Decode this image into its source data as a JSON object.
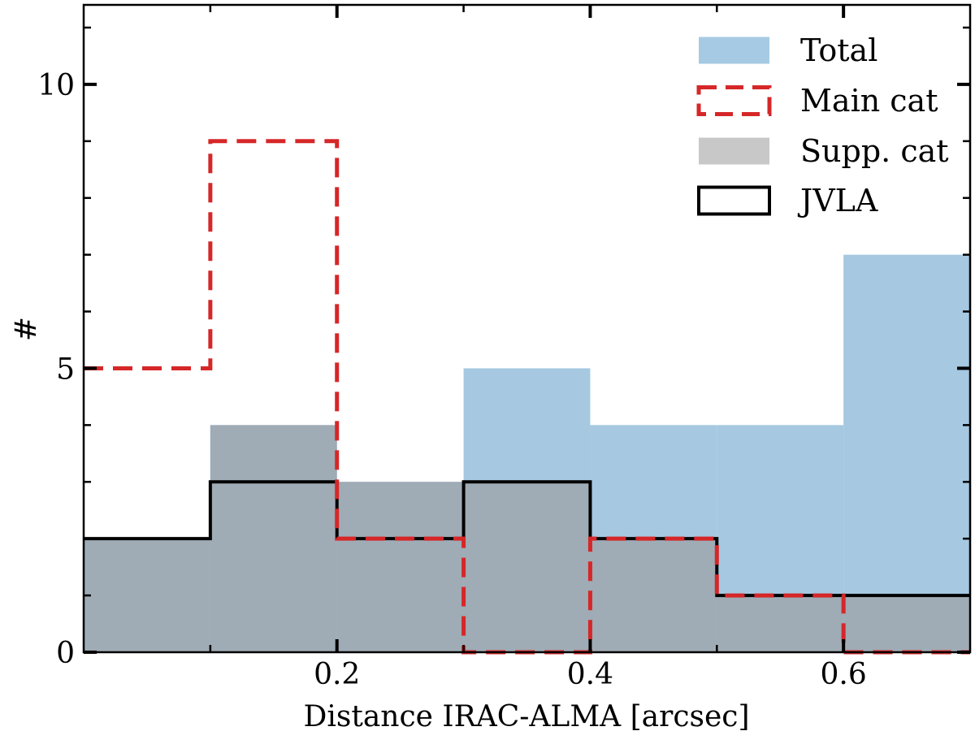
{
  "chart_data": {
    "type": "bar",
    "xlabel": "Distance IRAC-ALMA [arcsec]",
    "ylabel": "#",
    "xlim": [
      0.0,
      0.7
    ],
    "ylim": [
      0,
      11.4
    ],
    "xticks": [
      0.2,
      0.4,
      0.6
    ],
    "xtick_labels": [
      "0.2",
      "0.4",
      "0.6"
    ],
    "yticks": [
      0,
      5,
      10
    ],
    "ytick_labels": [
      "0",
      "5",
      "10"
    ],
    "grid": false,
    "legend_position": "top-right",
    "bin_edges": [
      0.0,
      0.1,
      0.2,
      0.3,
      0.4,
      0.5,
      0.6,
      0.7
    ],
    "series": [
      {
        "name": "Total",
        "style": "filled",
        "color": "#a6c8e1",
        "values": [
          2,
          4,
          3,
          5,
          4,
          4,
          7
        ]
      },
      {
        "name": "Main cat",
        "style": "dashed-step",
        "color": "#d62728",
        "values": [
          5,
          9,
          2,
          0,
          2,
          1,
          0
        ]
      },
      {
        "name": "Supp. cat",
        "style": "filled",
        "color": "#9fabb5",
        "values": [
          2,
          4,
          3,
          3,
          2,
          1,
          1
        ]
      },
      {
        "name": "JVLA",
        "style": "solid-step",
        "color": "#000000",
        "values": [
          2,
          3,
          2,
          3,
          2,
          1,
          1
        ]
      }
    ],
    "legend_swatch_colors": {
      "Total": "#a6cae3",
      "Main cat": "#d62728",
      "Supp. cat": "#c8c8c8",
      "JVLA": "#000000"
    }
  }
}
